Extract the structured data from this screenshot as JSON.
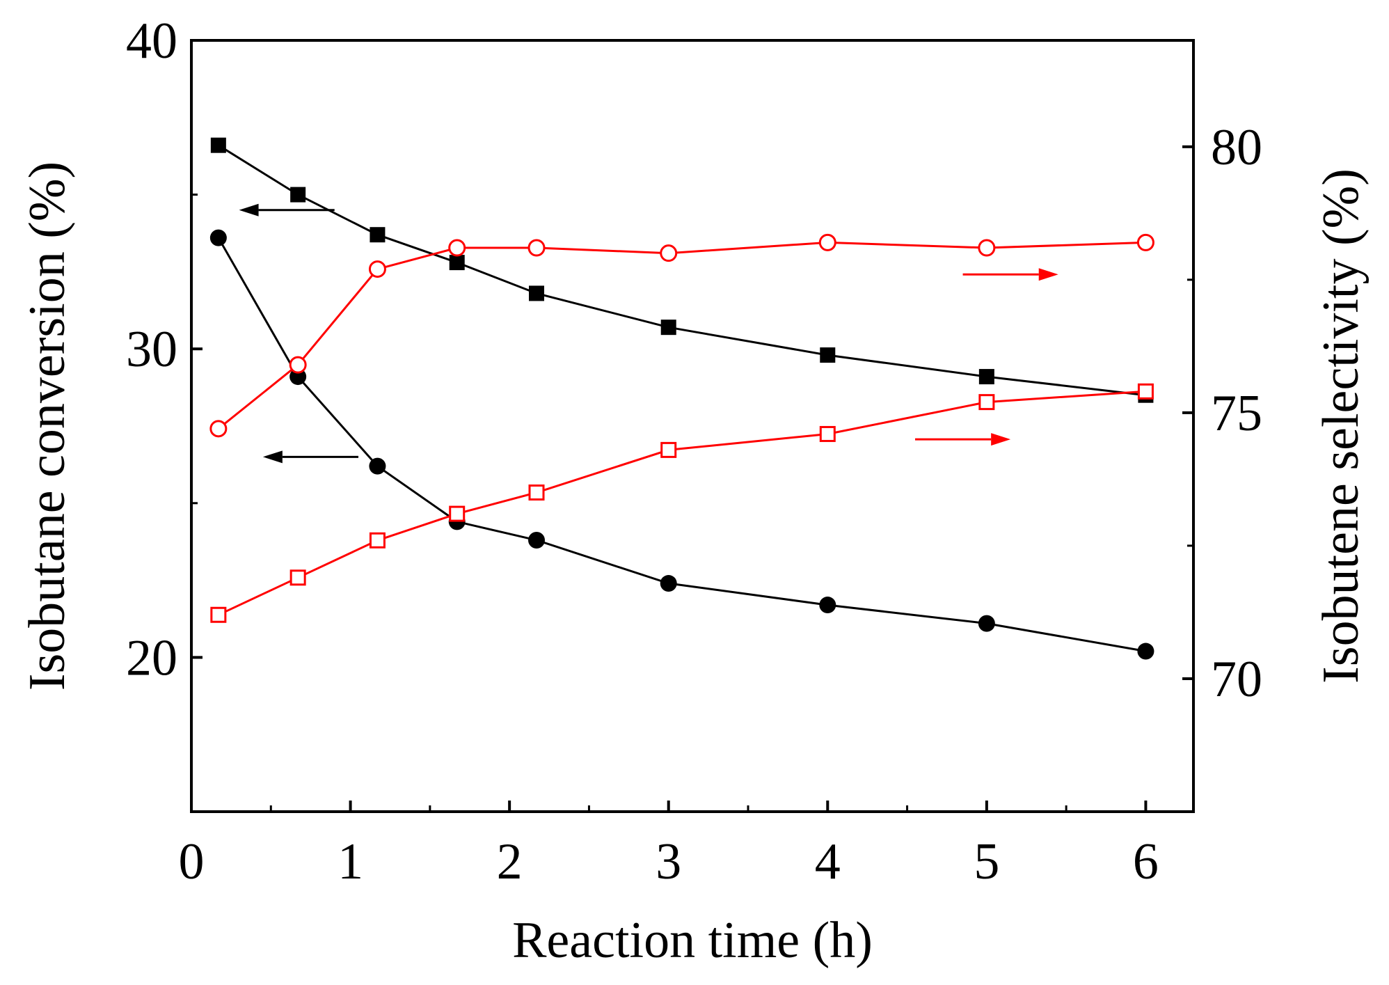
{
  "chart_data": {
    "type": "line",
    "title": "",
    "xlabel": "Reaction time (h)",
    "ylabel_left": "Isobutane conversion (%)",
    "ylabel_right": "Isobutene selectivity (%)",
    "xlim": [
      0,
      6.3
    ],
    "ylim_left": [
      15,
      40
    ],
    "ylim_right": [
      67.5,
      82
    ],
    "x_ticks": [
      "0",
      "1",
      "2",
      "3",
      "4",
      "5",
      "6"
    ],
    "y_left_ticks": [
      "20",
      "30",
      "40"
    ],
    "y_right_ticks": [
      "70",
      "75",
      "80"
    ],
    "colors": {
      "black": "#000000",
      "red": "#ff0000"
    },
    "series": [
      {
        "name": "Conversion (filled squares)",
        "axis": "left",
        "marker": "square-filled",
        "color": "#000000",
        "x": [
          0.17,
          0.67,
          1.17,
          1.67,
          2.17,
          3,
          4,
          5,
          6
        ],
        "values": [
          36.6,
          35.0,
          33.7,
          32.8,
          31.8,
          30.7,
          29.8,
          29.1,
          28.5
        ]
      },
      {
        "name": "Conversion (filled circles)",
        "axis": "left",
        "marker": "circle-filled",
        "color": "#000000",
        "x": [
          0.17,
          0.67,
          1.17,
          1.67,
          2.17,
          3,
          4,
          5,
          6
        ],
        "values": [
          33.6,
          29.1,
          26.2,
          24.4,
          23.8,
          22.4,
          21.7,
          21.1,
          20.2
        ]
      },
      {
        "name": "Selectivity (open circles)",
        "axis": "right",
        "marker": "circle-open",
        "color": "#ff0000",
        "x": [
          0.17,
          0.67,
          1.17,
          1.67,
          2.17,
          3,
          4,
          5,
          6
        ],
        "values": [
          74.7,
          75.9,
          77.7,
          78.1,
          78.1,
          78.0,
          78.2,
          78.1,
          78.2
        ]
      },
      {
        "name": "Selectivity (open squares)",
        "axis": "right",
        "marker": "square-open",
        "color": "#ff0000",
        "x": [
          0.17,
          0.67,
          1.17,
          1.67,
          2.17,
          3,
          4,
          5,
          6
        ],
        "values": [
          71.2,
          71.9,
          72.6,
          73.1,
          73.5,
          74.3,
          74.6,
          75.2,
          75.4
        ]
      }
    ],
    "annotations": [
      {
        "type": "arrow",
        "direction": "left",
        "color": "#000000",
        "x_from": 0.9,
        "x_to": 0.3,
        "y": 34.5,
        "axis": "left",
        "points_to": "Conversion (filled squares)"
      },
      {
        "type": "arrow",
        "direction": "left",
        "color": "#000000",
        "x_from": 1.05,
        "x_to": 0.45,
        "y": 26.5,
        "axis": "left",
        "points_to": "Conversion (filled circles)"
      },
      {
        "type": "arrow",
        "direction": "right",
        "color": "#ff0000",
        "x_from": 4.85,
        "x_to": 5.45,
        "y": 77.6,
        "axis": "right",
        "points_to": "Selectivity (open circles)"
      },
      {
        "type": "arrow",
        "direction": "right",
        "color": "#ff0000",
        "x_from": 4.55,
        "x_to": 5.15,
        "y": 74.5,
        "axis": "right",
        "points_to": "Selectivity (open squares)"
      }
    ]
  }
}
